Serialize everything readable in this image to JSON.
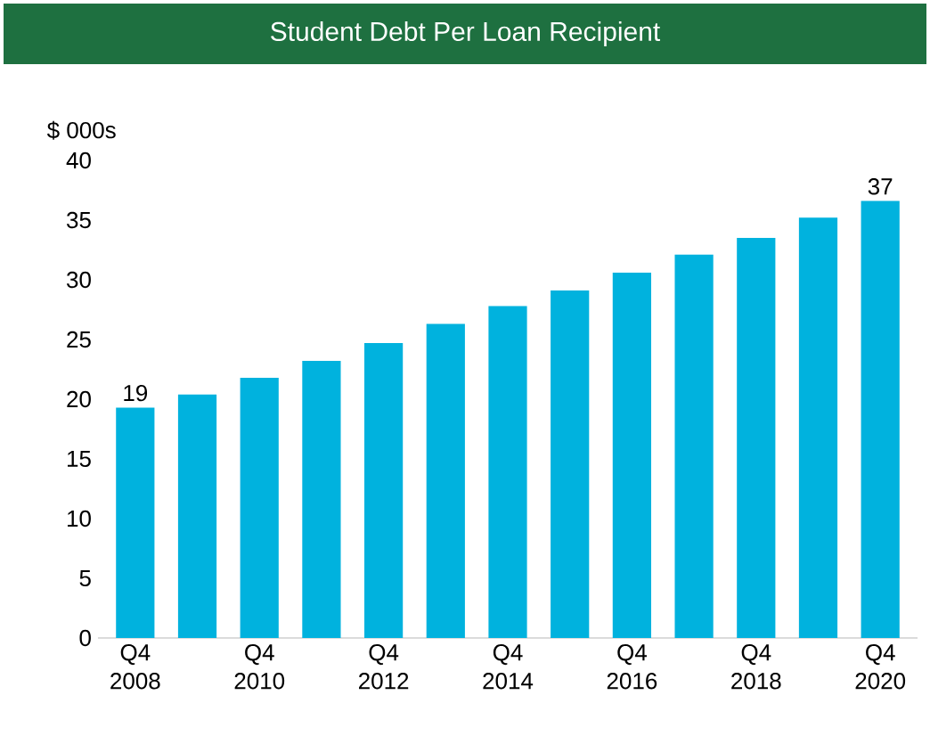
{
  "chart_data": {
    "type": "bar",
    "title": "Student Debt Per Loan Recipient",
    "ylabel": "$ 000s",
    "categories": [
      "Q4 2008",
      null,
      "Q4 2010",
      null,
      "Q4 2012",
      null,
      "Q4 2014",
      null,
      "Q4 2016",
      null,
      "Q4 2018",
      null,
      "Q4 2020"
    ],
    "values": [
      19.3,
      20.4,
      21.8,
      23.2,
      24.7,
      26.3,
      27.8,
      29.1,
      30.6,
      32.1,
      33.5,
      35.2,
      36.6
    ],
    "value_labels": [
      "19",
      null,
      null,
      null,
      null,
      null,
      null,
      null,
      null,
      null,
      null,
      null,
      "37"
    ],
    "color": "#00b2de",
    "ylim": [
      0,
      40
    ],
    "yticks": [
      0,
      5,
      10,
      15,
      20,
      25,
      30,
      35,
      40
    ]
  }
}
